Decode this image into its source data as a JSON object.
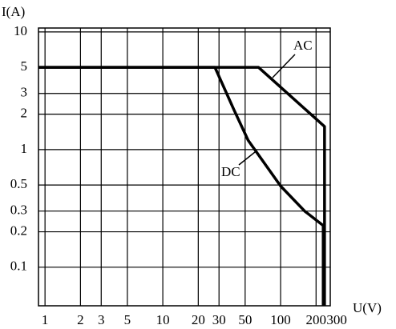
{
  "chart_data": {
    "type": "line",
    "y_label": "I(A)",
    "x_label": "U(V)",
    "xscale": "log",
    "yscale": "log",
    "grid": true,
    "xlim": [
      0.88,
      264
    ],
    "ylim": [
      0.047,
      10.8
    ],
    "xticks": [
      1,
      2,
      3,
      5,
      10,
      20,
      30,
      50,
      100,
      200,
      300
    ],
    "yticks": [
      10,
      5,
      3,
      2,
      1,
      0.5,
      0.3,
      0.2,
      0.1
    ],
    "series": [
      {
        "name": "AC",
        "color": "#000000",
        "x": [
          0.88,
          65,
          236,
          236
        ],
        "values": [
          5,
          5,
          1.57,
          0.047
        ]
      },
      {
        "name": "DC",
        "color": "#000000",
        "x": [
          0.88,
          27.7,
          40,
          53,
          100,
          160,
          230,
          230
        ],
        "values": [
          5,
          5,
          2.2,
          1.2,
          0.49,
          0.3,
          0.226,
          0.047
        ]
      }
    ]
  }
}
